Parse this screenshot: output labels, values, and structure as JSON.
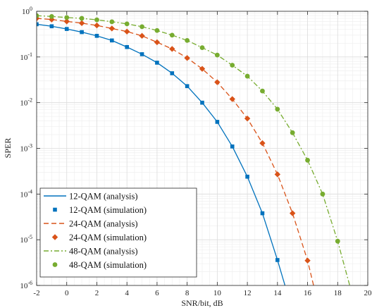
{
  "chart_data": {
    "type": "line",
    "xlabel": "SNR/bit, dB",
    "ylabel": "SPER",
    "xlim": [
      -2,
      20
    ],
    "ylim": [
      1e-06,
      1
    ],
    "yscale": "log",
    "grid": true,
    "minor_grid": true,
    "legend_placement": "bottom-left",
    "x_ticks": [
      "-2",
      "0",
      "2",
      "4",
      "6",
      "8",
      "10",
      "12",
      "14",
      "16",
      "18",
      "20"
    ],
    "y_ticks": [
      {
        "base": "10",
        "exp": "0",
        "value": 1
      },
      {
        "base": "10",
        "exp": "-1",
        "value": 0.1
      },
      {
        "base": "10",
        "exp": "-2",
        "value": 0.01
      },
      {
        "base": "10",
        "exp": "-3",
        "value": 0.001
      },
      {
        "base": "10",
        "exp": "-4",
        "value": 0.0001
      },
      {
        "base": "10",
        "exp": "-5",
        "value": 1e-05
      },
      {
        "base": "10",
        "exp": "-6",
        "value": 1e-06
      }
    ],
    "series": [
      {
        "name": "12-QAM (analysis)",
        "kind": "analysis",
        "color": "#0072BD",
        "dash": "",
        "x": [
          -2,
          -1,
          0,
          1,
          2,
          3,
          4,
          5,
          6,
          7,
          8,
          9,
          10,
          11,
          12,
          13,
          14,
          14.5
        ],
        "y": [
          0.52,
          0.47,
          0.41,
          0.35,
          0.29,
          0.23,
          0.165,
          0.115,
          0.075,
          0.044,
          0.023,
          0.01,
          0.0038,
          0.0011,
          0.00024,
          3.8e-05,
          3.6e-06,
          1e-06
        ]
      },
      {
        "name": "12-QAM (simulation)",
        "kind": "simulation",
        "color": "#0072BD",
        "marker": "square",
        "x": [
          -2,
          -1,
          0,
          1,
          2,
          3,
          4,
          5,
          6,
          7,
          8,
          9,
          10,
          11,
          12,
          13,
          14
        ],
        "y": [
          0.52,
          0.47,
          0.41,
          0.35,
          0.29,
          0.23,
          0.165,
          0.115,
          0.075,
          0.044,
          0.023,
          0.01,
          0.0038,
          0.0011,
          0.00024,
          3.8e-05,
          3.6e-06
        ]
      },
      {
        "name": "24-QAM (analysis)",
        "kind": "analysis",
        "color": "#D95319",
        "dash": "7,4",
        "x": [
          -2,
          -1,
          0,
          1,
          2,
          3,
          4,
          5,
          6,
          7,
          8,
          9,
          10,
          11,
          12,
          13,
          14,
          15,
          16,
          16.4
        ],
        "y": [
          0.7,
          0.66,
          0.6,
          0.55,
          0.49,
          0.42,
          0.36,
          0.29,
          0.21,
          0.15,
          0.095,
          0.055,
          0.028,
          0.012,
          0.0045,
          0.0013,
          0.00027,
          3.8e-05,
          3.5e-06,
          1e-06
        ]
      },
      {
        "name": "24-QAM (simulation)",
        "kind": "simulation",
        "color": "#D95319",
        "marker": "diamond",
        "x": [
          -2,
          -1,
          0,
          1,
          2,
          3,
          4,
          5,
          6,
          7,
          8,
          9,
          10,
          11,
          12,
          13,
          14,
          15,
          16
        ],
        "y": [
          0.7,
          0.66,
          0.6,
          0.55,
          0.49,
          0.42,
          0.36,
          0.29,
          0.21,
          0.15,
          0.095,
          0.055,
          0.028,
          0.012,
          0.0045,
          0.0013,
          0.00027,
          3.8e-05,
          3.5e-06
        ]
      },
      {
        "name": "48-QAM (analysis)",
        "kind": "analysis",
        "color": "#77AC30",
        "dash": "7,3,2,3",
        "x": [
          -2,
          -1,
          0,
          1,
          2,
          3,
          4,
          5,
          6,
          7,
          8,
          9,
          10,
          11,
          12,
          13,
          14,
          15,
          16,
          17,
          18,
          18.8
        ],
        "y": [
          0.8,
          0.77,
          0.73,
          0.7,
          0.65,
          0.59,
          0.53,
          0.46,
          0.38,
          0.3,
          0.23,
          0.16,
          0.11,
          0.066,
          0.038,
          0.018,
          0.0072,
          0.0022,
          0.00055,
          0.0001,
          9.3e-06,
          1e-06
        ]
      },
      {
        "name": "48-QAM (simulation)",
        "kind": "simulation",
        "color": "#77AC30",
        "marker": "circle",
        "x": [
          -2,
          -1,
          0,
          1,
          2,
          3,
          4,
          5,
          6,
          7,
          8,
          9,
          10,
          11,
          12,
          13,
          14,
          15,
          16,
          17,
          18
        ],
        "y": [
          0.8,
          0.77,
          0.73,
          0.7,
          0.65,
          0.59,
          0.53,
          0.46,
          0.38,
          0.3,
          0.23,
          0.16,
          0.11,
          0.066,
          0.038,
          0.018,
          0.0072,
          0.0022,
          0.00055,
          0.0001,
          9.3e-06
        ]
      }
    ]
  }
}
